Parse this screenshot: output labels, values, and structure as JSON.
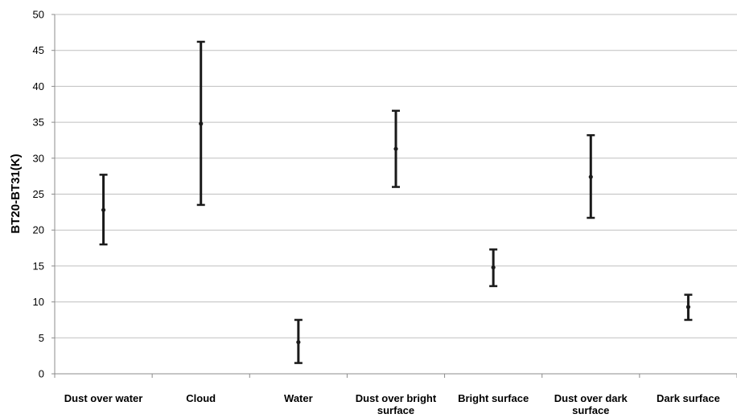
{
  "chart_data": {
    "type": "scatter",
    "title": "",
    "xlabel": "",
    "ylabel": "BT20-BT31(K)",
    "ylim": [
      0,
      50
    ],
    "yticks": [
      0,
      5,
      10,
      15,
      20,
      25,
      30,
      35,
      40,
      45,
      50
    ],
    "grid": true,
    "legend": "none",
    "categories": [
      [
        "Dust over water"
      ],
      [
        "Cloud"
      ],
      [
        "Water"
      ],
      [
        "Dust over bright",
        "surface"
      ],
      [
        "Bright surface"
      ],
      [
        "Dust over dark",
        "surface"
      ],
      [
        "Dark surface"
      ]
    ],
    "series": [
      {
        "values": [
          22.8,
          34.8,
          4.4,
          31.3,
          14.8,
          27.4,
          9.3
        ],
        "error_low": [
          18.0,
          23.5,
          1.5,
          26.0,
          12.2,
          21.7,
          7.5
        ],
        "error_high": [
          27.7,
          46.2,
          7.5,
          36.6,
          17.3,
          33.2,
          11.0
        ]
      }
    ],
    "colors": {
      "grid": "#bfbfbf",
      "axis": "#8c8c8c",
      "marker": "#1a1a1a"
    }
  }
}
